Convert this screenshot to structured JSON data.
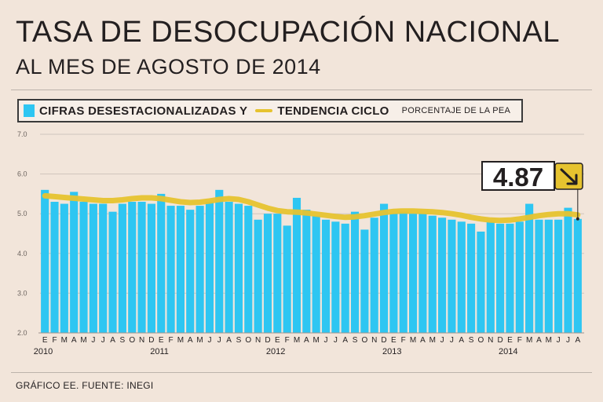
{
  "header": {
    "title": "TASA DE DESOCUPACIÓN NACIONAL",
    "subtitle": "AL MES DE AGOSTO DE 2014"
  },
  "legend": {
    "bars_label": "CIFRAS DESESTACIONALIZADAS Y",
    "line_label": "TENDENCIA CICLO",
    "note": "PORCENTAJE DE LA PEA"
  },
  "callout": {
    "value": "4.87",
    "arrow_icon": "arrow-down-right-icon"
  },
  "footer": {
    "source": "GRÁFICO EE. FUENTE: INEGI"
  },
  "colors": {
    "background": "#f2e5da",
    "bars": "#2ec6f2",
    "trend": "#e6c32f",
    "grid": "#cfc5bd",
    "text": "#231f20"
  },
  "chart_data": {
    "type": "bar",
    "title": "TASA DE DESOCUPACIÓN NACIONAL",
    "ylabel": "PORCENTAJE DE LA PEA",
    "ylim": [
      2.0,
      7.0
    ],
    "yticks": [
      "2.0",
      "3.0",
      "4.0",
      "5.0",
      "6.0",
      "7.0"
    ],
    "grid": true,
    "month_labels": [
      "E",
      "F",
      "M",
      "A",
      "M",
      "J",
      "J",
      "A",
      "S",
      "O",
      "N",
      "D",
      "E",
      "F",
      "M",
      "A",
      "M",
      "J",
      "J",
      "A",
      "S",
      "O",
      "N",
      "D",
      "E",
      "F",
      "M",
      "A",
      "M",
      "J",
      "J",
      "A",
      "S",
      "O",
      "N",
      "D",
      "E",
      "F",
      "M",
      "A",
      "M",
      "J",
      "J",
      "A",
      "S",
      "O",
      "N",
      "D",
      "E",
      "F",
      "M",
      "A",
      "M",
      "J",
      "J",
      "A"
    ],
    "year_labels": [
      {
        "label": "2010",
        "month_index": 0
      },
      {
        "label": "2011",
        "month_index": 12
      },
      {
        "label": "2012",
        "month_index": 24
      },
      {
        "label": "2013",
        "month_index": 36
      },
      {
        "label": "2014",
        "month_index": 48
      }
    ],
    "series": [
      {
        "name": "CIFRAS DESESTACIONALIZADAS",
        "values": [
          5.6,
          5.3,
          5.25,
          5.55,
          5.3,
          5.25,
          5.25,
          5.05,
          5.25,
          5.3,
          5.3,
          5.25,
          5.5,
          5.2,
          5.2,
          5.1,
          5.2,
          5.3,
          5.6,
          5.3,
          5.25,
          5.2,
          4.85,
          5.0,
          5.0,
          4.7,
          5.4,
          5.1,
          4.95,
          4.85,
          4.8,
          4.75,
          5.05,
          4.6,
          4.9,
          5.25,
          5.0,
          5.05,
          5.0,
          5.0,
          4.95,
          4.9,
          4.85,
          4.8,
          4.75,
          4.55,
          4.8,
          4.75,
          4.75,
          4.8,
          5.25,
          4.85,
          4.85,
          4.85,
          5.15,
          4.87
        ]
      },
      {
        "name": "TENDENCIA CICLO",
        "values": [
          5.45,
          5.43,
          5.41,
          5.39,
          5.37,
          5.35,
          5.33,
          5.33,
          5.35,
          5.38,
          5.4,
          5.4,
          5.38,
          5.34,
          5.3,
          5.28,
          5.29,
          5.32,
          5.36,
          5.38,
          5.36,
          5.3,
          5.22,
          5.14,
          5.08,
          5.05,
          5.04,
          5.02,
          4.99,
          4.96,
          4.93,
          4.91,
          4.92,
          4.95,
          4.99,
          5.03,
          5.06,
          5.07,
          5.07,
          5.06,
          5.05,
          5.03,
          5.0,
          4.96,
          4.91,
          4.87,
          4.84,
          4.83,
          4.84,
          4.87,
          4.91,
          4.95,
          4.98,
          5.0,
          5.0,
          4.97
        ]
      }
    ]
  }
}
